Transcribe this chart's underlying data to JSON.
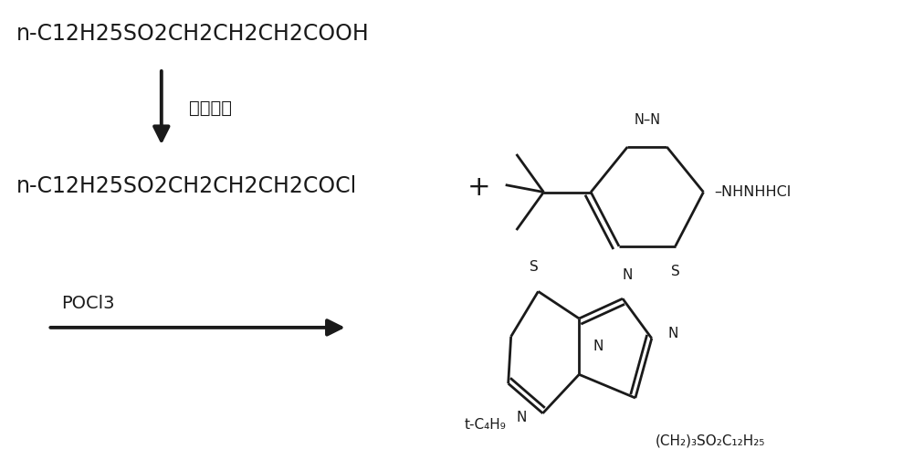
{
  "bg_color": "#ffffff",
  "line_color": "#1a1a1a",
  "text_color": "#1a1a1a",
  "figsize": [
    10.0,
    5.15
  ],
  "dpi": 100,
  "lw": 2.0,
  "lw_thick": 2.8,
  "reagent1": "n-C12H25SO2CH2CH2CH2COOH",
  "reagent1_fs": 17,
  "reagent2": "n-C12H25SO2CH2CH2CH2COCl",
  "reagent2_fs": 17,
  "arrow1_label": "氯化亚砱",
  "arrow1_label_fs": 14,
  "arrow2_label": "POCl3",
  "arrow2_label_fs": 14,
  "nhnhhcl": "NHNHHCl",
  "tbu_label": "t-C₄H₉",
  "ch2so2_label": "(CH₂)₃SO₂C₁₂H₂₅",
  "plus": "+",
  "S_label": "S",
  "N_label": "N"
}
